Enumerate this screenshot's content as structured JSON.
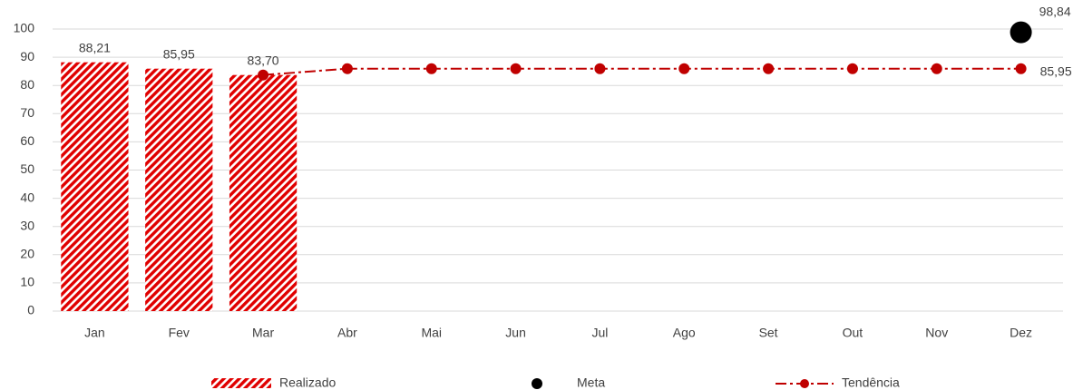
{
  "chart_data": {
    "type": "bar",
    "categories": [
      "Jan",
      "Fev",
      "Mar",
      "Abr",
      "Mai",
      "Jun",
      "Jul",
      "Ago",
      "Set",
      "Out",
      "Nov",
      "Dez"
    ],
    "ylim": [
      0,
      100
    ],
    "yticks": [
      0,
      10,
      20,
      30,
      40,
      50,
      60,
      70,
      80,
      90,
      100
    ],
    "grid": true,
    "legend": "bottom",
    "series": [
      {
        "name": "Realizado",
        "type": "bar",
        "color": "#e00000",
        "values": [
          88.21,
          85.95,
          83.7,
          null,
          null,
          null,
          null,
          null,
          null,
          null,
          null,
          null
        ],
        "value_labels": [
          "88,21",
          "85,95",
          "83,70",
          null,
          null,
          null,
          null,
          null,
          null,
          null,
          null,
          null
        ]
      },
      {
        "name": "Meta",
        "type": "scatter",
        "color": "#000000",
        "values": [
          null,
          null,
          null,
          null,
          null,
          null,
          null,
          null,
          null,
          null,
          null,
          98.84
        ],
        "value_labels": [
          null,
          null,
          null,
          null,
          null,
          null,
          null,
          null,
          null,
          null,
          null,
          "98,84"
        ]
      },
      {
        "name": "Tendência",
        "type": "line",
        "color": "#c00000",
        "values": [
          null,
          null,
          83.7,
          85.95,
          85.95,
          85.95,
          85.95,
          85.95,
          85.95,
          85.95,
          85.95,
          85.95
        ],
        "value_labels": [
          null,
          null,
          null,
          null,
          null,
          null,
          null,
          null,
          null,
          null,
          null,
          "85,95"
        ]
      }
    ]
  }
}
